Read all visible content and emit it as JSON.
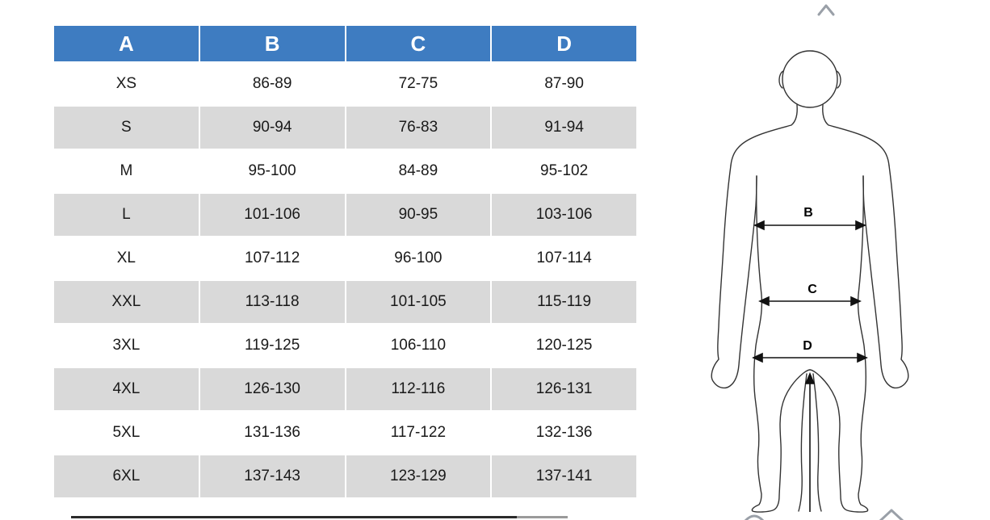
{
  "chart_data": {
    "type": "table",
    "columns": [
      "A",
      "B",
      "C",
      "D"
    ],
    "rows": [
      [
        "XS",
        "86-89",
        "72-75",
        "87-90"
      ],
      [
        "S",
        "90-94",
        "76-83",
        "91-94"
      ],
      [
        "M",
        "95-100",
        "84-89",
        "95-102"
      ],
      [
        "L",
        "101-106",
        "90-95",
        "103-106"
      ],
      [
        "XL",
        "107-112",
        "96-100",
        "107-114"
      ],
      [
        "XXL",
        "113-118",
        "101-105",
        "115-119"
      ],
      [
        "3XL",
        "119-125",
        "106-110",
        "120-125"
      ],
      [
        "4XL",
        "126-130",
        "112-116",
        "126-131"
      ],
      [
        "5XL",
        "131-136",
        "117-122",
        "132-136"
      ],
      [
        "6XL",
        "137-143",
        "123-129",
        "137-141"
      ]
    ],
    "layout": "size chart table on left, male body measurement diagram on right"
  },
  "diagram": {
    "labels": [
      "B",
      "C",
      "D"
    ]
  },
  "colors": {
    "header_bg": "#3e7cc1",
    "header_text": "#ffffff",
    "row_alt_bg": "#d9d9d9"
  }
}
